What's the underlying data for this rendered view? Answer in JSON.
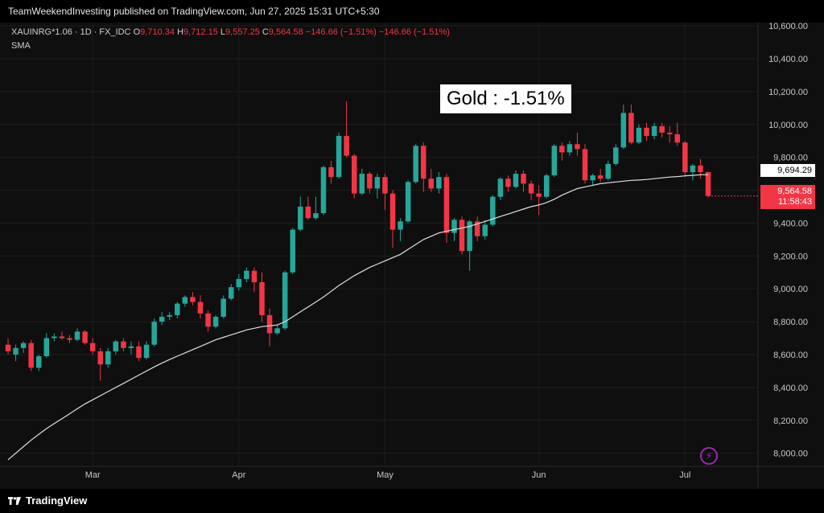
{
  "header": {
    "published_text": "TeamWeekendInvesting published on TradingView.com, Jun 27, 2025 15:31 UTC+5:30"
  },
  "legend": {
    "symbol": "XAUINRG*1.06 · 1D · FX_IDC",
    "open_label": "O",
    "open": "9,710.34",
    "high_label": "H",
    "high": "9,712.15",
    "low_label": "L",
    "low": "9,557.25",
    "close_label": "C",
    "close": "9,564.58",
    "change": "−146.66 (−1.51%)",
    "change2": "−146.66 (−1.51%)",
    "sma_label": "SMA"
  },
  "annotation": {
    "text": "Gold : -1.51%"
  },
  "price_tags": {
    "sma_value": "9,694.29",
    "last_value": "9,564.58",
    "countdown": "11:58:43"
  },
  "footer": {
    "brand": "TradingView"
  },
  "icons": {
    "flash": "lightning-icon",
    "logo": "tradingview-logo-icon"
  },
  "colors": {
    "up": "#26a69a",
    "down": "#f23645",
    "sma": "#e0e0e0",
    "background": "#0f0f0f",
    "grid": "#1e1e1e"
  },
  "chart_data": {
    "type": "candlestick",
    "title": "",
    "y_ticks": [
      8000,
      8200,
      8400,
      8600,
      8800,
      9000,
      9200,
      9400,
      9600,
      9800,
      10000,
      10200,
      10400,
      10600
    ],
    "y_tick_labels": [
      "8,000.00",
      "8,200.00",
      "8,400.00",
      "8,600.00",
      "8,800.00",
      "9,000.00",
      "9,200.00",
      "9,400.00",
      "9,600.00",
      "9,800.00",
      "10,000.00",
      "10,200.00",
      "10,400.00",
      "10,600.00"
    ],
    "ylim": [
      7920,
      10620
    ],
    "x_labels": [
      "Mar",
      "Apr",
      "May",
      "Jun",
      "Jul"
    ],
    "x_label_index": [
      11,
      30,
      49,
      69,
      88
    ],
    "candles": [
      [
        8660,
        8700,
        8600,
        8620
      ],
      [
        8600,
        8660,
        8560,
        8640
      ],
      [
        8640,
        8680,
        8610,
        8670
      ],
      [
        8670,
        8690,
        8500,
        8520
      ],
      [
        8520,
        8600,
        8500,
        8590
      ],
      [
        8590,
        8730,
        8580,
        8700
      ],
      [
        8700,
        8730,
        8680,
        8710
      ],
      [
        8710,
        8740,
        8690,
        8700
      ],
      [
        8700,
        8720,
        8670,
        8690
      ],
      [
        8690,
        8760,
        8680,
        8740
      ],
      [
        8740,
        8750,
        8660,
        8670
      ],
      [
        8670,
        8700,
        8600,
        8620
      ],
      [
        8620,
        8640,
        8440,
        8540
      ],
      [
        8540,
        8640,
        8520,
        8620
      ],
      [
        8620,
        8690,
        8600,
        8680
      ],
      [
        8680,
        8700,
        8620,
        8640
      ],
      [
        8640,
        8680,
        8600,
        8650
      ],
      [
        8650,
        8680,
        8560,
        8580
      ],
      [
        8580,
        8680,
        8570,
        8660
      ],
      [
        8660,
        8820,
        8650,
        8800
      ],
      [
        8800,
        8860,
        8780,
        8830
      ],
      [
        8830,
        8860,
        8810,
        8840
      ],
      [
        8840,
        8920,
        8820,
        8910
      ],
      [
        8910,
        8960,
        8890,
        8950
      ],
      [
        8950,
        8980,
        8900,
        8920
      ],
      [
        8920,
        8960,
        8820,
        8850
      ],
      [
        8850,
        8870,
        8740,
        8770
      ],
      [
        8770,
        8840,
        8760,
        8830
      ],
      [
        8830,
        8960,
        8820,
        8940
      ],
      [
        8940,
        9030,
        8930,
        9010
      ],
      [
        9010,
        9090,
        8990,
        9060
      ],
      [
        9060,
        9130,
        9040,
        9110
      ],
      [
        9110,
        9130,
        8980,
        9040
      ],
      [
        9040,
        9100,
        8800,
        8840
      ],
      [
        8840,
        8880,
        8650,
        8730
      ],
      [
        8730,
        8780,
        8720,
        8760
      ],
      [
        8760,
        9110,
        8750,
        9100
      ],
      [
        9100,
        9370,
        9090,
        9360
      ],
      [
        9360,
        9560,
        9350,
        9500
      ],
      [
        9500,
        9560,
        9420,
        9430
      ],
      [
        9430,
        9560,
        9420,
        9460
      ],
      [
        9460,
        9750,
        9450,
        9740
      ],
      [
        9740,
        9780,
        9640,
        9680
      ],
      [
        9680,
        9950,
        9670,
        9930
      ],
      [
        9930,
        10140,
        9800,
        9810
      ],
      [
        9810,
        9820,
        9550,
        9580
      ],
      [
        9580,
        9730,
        9570,
        9700
      ],
      [
        9700,
        9710,
        9580,
        9610
      ],
      [
        9610,
        9700,
        9550,
        9680
      ],
      [
        9680,
        9700,
        9480,
        9580
      ],
      [
        9580,
        9600,
        9250,
        9360
      ],
      [
        9360,
        9430,
        9290,
        9410
      ],
      [
        9410,
        9660,
        9400,
        9650
      ],
      [
        9650,
        9880,
        9640,
        9870
      ],
      [
        9870,
        9890,
        9590,
        9670
      ],
      [
        9670,
        9730,
        9590,
        9610
      ],
      [
        9610,
        9710,
        9580,
        9680
      ],
      [
        9680,
        9700,
        9280,
        9340
      ],
      [
        9340,
        9430,
        9290,
        9420
      ],
      [
        9420,
        9440,
        9210,
        9230
      ],
      [
        9230,
        9420,
        9110,
        9410
      ],
      [
        9410,
        9440,
        9290,
        9320
      ],
      [
        9320,
        9420,
        9300,
        9390
      ],
      [
        9390,
        9570,
        9380,
        9560
      ],
      [
        9560,
        9680,
        9540,
        9670
      ],
      [
        9670,
        9690,
        9590,
        9620
      ],
      [
        9620,
        9720,
        9610,
        9700
      ],
      [
        9700,
        9720,
        9590,
        9640
      ],
      [
        9640,
        9660,
        9540,
        9580
      ],
      [
        9580,
        9630,
        9450,
        9560
      ],
      [
        9560,
        9700,
        9550,
        9690
      ],
      [
        9690,
        9880,
        9680,
        9870
      ],
      [
        9870,
        9890,
        9780,
        9830
      ],
      [
        9830,
        9900,
        9810,
        9880
      ],
      [
        9880,
        9950,
        9810,
        9850
      ],
      [
        9850,
        9880,
        9640,
        9660
      ],
      [
        9660,
        9700,
        9630,
        9690
      ],
      [
        9690,
        9730,
        9650,
        9670
      ],
      [
        9670,
        9780,
        9660,
        9760
      ],
      [
        9760,
        9880,
        9750,
        9860
      ],
      [
        9860,
        10120,
        9850,
        10070
      ],
      [
        10070,
        10120,
        9880,
        9890
      ],
      [
        9890,
        10000,
        9880,
        9980
      ],
      [
        9980,
        10010,
        9900,
        9930
      ],
      [
        9930,
        10010,
        9910,
        9990
      ],
      [
        9990,
        10010,
        9920,
        9950
      ],
      [
        9950,
        9990,
        9890,
        9940
      ],
      [
        9940,
        10010,
        9870,
        9890
      ],
      [
        9890,
        9900,
        9680,
        9710
      ],
      [
        9710,
        9760,
        9660,
        9750
      ],
      [
        9750,
        9790,
        9670,
        9710
      ],
      [
        9710,
        9712,
        9557,
        9565
      ]
    ],
    "sma": [
      7960,
      8000,
      8040,
      8080,
      8115,
      8150,
      8180,
      8210,
      8240,
      8270,
      8300,
      8325,
      8350,
      8375,
      8400,
      8425,
      8450,
      8475,
      8500,
      8525,
      8548,
      8570,
      8590,
      8610,
      8630,
      8650,
      8670,
      8690,
      8705,
      8720,
      8735,
      8750,
      8760,
      8770,
      8775,
      8780,
      8800,
      8830,
      8860,
      8890,
      8920,
      8950,
      8985,
      9020,
      9050,
      9080,
      9105,
      9130,
      9150,
      9170,
      9190,
      9210,
      9240,
      9270,
      9300,
      9320,
      9340,
      9350,
      9360,
      9370,
      9380,
      9395,
      9410,
      9425,
      9440,
      9455,
      9470,
      9485,
      9500,
      9510,
      9525,
      9545,
      9570,
      9590,
      9610,
      9620,
      9630,
      9640,
      9645,
      9650,
      9655,
      9660,
      9662,
      9665,
      9670,
      9675,
      9680,
      9683,
      9687,
      9690,
      9694,
      9694
    ]
  }
}
